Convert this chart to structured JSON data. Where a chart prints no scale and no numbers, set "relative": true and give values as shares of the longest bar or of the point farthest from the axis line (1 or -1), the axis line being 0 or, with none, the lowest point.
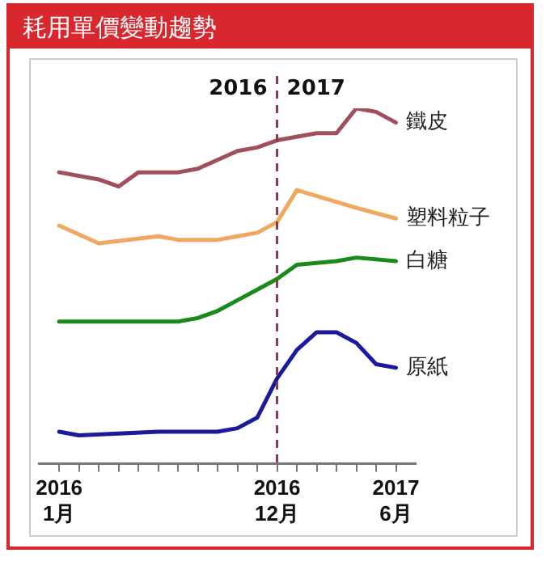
{
  "chart_data": {
    "type": "line",
    "title": "耗用單價變動趨勢",
    "relative": true,
    "xlim": [
      "2015-12",
      "2017-07"
    ],
    "xticks": [
      {
        "value": "2016-01",
        "label": "2016\n1月"
      },
      {
        "value": "2016-02",
        "label": null
      },
      {
        "value": "2016-03",
        "label": null
      },
      {
        "value": "2016-04",
        "label": null
      },
      {
        "value": "2016-05",
        "label": null
      },
      {
        "value": "2016-06",
        "label": null
      },
      {
        "value": "2016-07",
        "label": null
      },
      {
        "value": "2016-08",
        "label": null
      },
      {
        "value": "2016-09",
        "label": null
      },
      {
        "value": "2016-10",
        "label": null
      },
      {
        "value": "2016-11",
        "label": null
      },
      {
        "value": "2016-12",
        "label": "2016\n12月"
      },
      {
        "value": "2017-01",
        "label": null
      },
      {
        "value": "2017-02",
        "label": null
      },
      {
        "value": "2017-03",
        "label": null
      },
      {
        "value": "2017-04",
        "label": null
      },
      {
        "value": "2017-05",
        "label": null
      },
      {
        "value": "2017-06",
        "label": "2017\n6月"
      }
    ],
    "series": [
      {
        "name": "鐵皮",
        "color": "#a0505a",
        "x": [
          "2016-01",
          "2016-03",
          "2016-04",
          "2016-05",
          "2016-07",
          "2016-08",
          "2016-10",
          "2016-11",
          "2016-12",
          "2017-02",
          "2017-03",
          "2017-04",
          "2017-05",
          "2017-06"
        ],
        "values": [
          0.82,
          0.8,
          0.78,
          0.82,
          0.82,
          0.83,
          0.88,
          0.89,
          0.91,
          0.93,
          0.93,
          1.0,
          0.99,
          0.96
        ]
      },
      {
        "name": "塑料粒子",
        "color": "#f0a860",
        "x": [
          "2016-01",
          "2016-03",
          "2016-06",
          "2016-07",
          "2016-09",
          "2016-10",
          "2016-11",
          "2016-12",
          "2017-01",
          "2017-04",
          "2017-06"
        ],
        "values": [
          0.67,
          0.62,
          0.64,
          0.63,
          0.63,
          0.64,
          0.65,
          0.68,
          0.77,
          0.72,
          0.69
        ]
      },
      {
        "name": "白糖",
        "color": "#1a8a1a",
        "x": [
          "2016-01",
          "2016-04",
          "2016-07",
          "2016-08",
          "2016-09",
          "2016-10",
          "2016-11",
          "2016-12",
          "2017-01",
          "2017-03",
          "2017-04",
          "2017-06"
        ],
        "values": [
          0.4,
          0.4,
          0.4,
          0.41,
          0.43,
          0.46,
          0.49,
          0.52,
          0.56,
          0.57,
          0.58,
          0.57
        ]
      },
      {
        "name": "原紙",
        "color": "#1a1a9a",
        "x": [
          "2016-01",
          "2016-02",
          "2016-06",
          "2016-09",
          "2016-10",
          "2016-11",
          "2016-12",
          "2017-01",
          "2017-02",
          "2017-03",
          "2017-04",
          "2017-05",
          "2017-06"
        ],
        "values": [
          0.09,
          0.08,
          0.09,
          0.09,
          0.1,
          0.13,
          0.24,
          0.32,
          0.37,
          0.37,
          0.34,
          0.28,
          0.27
        ]
      }
    ],
    "ref_lines": [
      {
        "axis": "x",
        "value": "2016-12",
        "label": "2016",
        "color": "#8b3a4a",
        "line_style": "dashed"
      }
    ],
    "annotations": [
      "2017"
    ],
    "grid": false,
    "legend": false
  }
}
